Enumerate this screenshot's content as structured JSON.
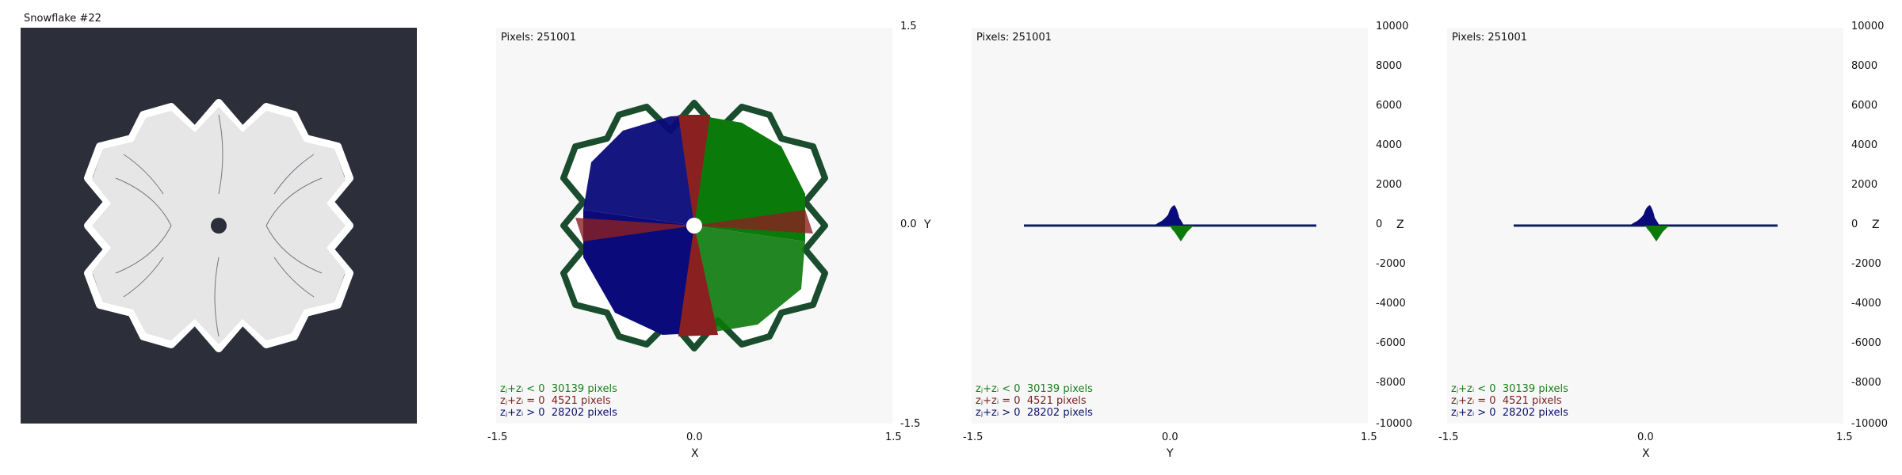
{
  "window": {
    "title": "Snowflake #22"
  },
  "colors": {
    "dark_bg": "#2c2f3a",
    "snow_fill": "#e6e6e6",
    "negative": "#0a7a0a",
    "zero": "#8b2020",
    "positive": "#0a0a7a",
    "panel_bg": "#f7f7f7"
  },
  "panels": [
    {
      "pixels_label": "Pixels: 251001",
      "x_label": "X",
      "y_label": "Y",
      "x_ticks": [
        "-1.5",
        "0.0",
        "1.5"
      ],
      "y_ticks": [
        "1.5",
        "0.0",
        "-1.5"
      ],
      "legend": [
        {
          "label": "zⱼ+zᵢ < 0",
          "value": "30139 pixels",
          "kind": "negative"
        },
        {
          "label": "zⱼ+zᵢ = 0",
          "value": "4521 pixels",
          "kind": "zero"
        },
        {
          "label": "zⱼ+zᵢ > 0",
          "value": "28202 pixels",
          "kind": "positive"
        }
      ]
    },
    {
      "pixels_label": "Pixels: 251001",
      "x_label": "Y",
      "y_label": "Z",
      "x_ticks": [
        "-1.5",
        "0.0",
        "1.5"
      ],
      "y_ticks": [
        "10000",
        "8000",
        "6000",
        "4000",
        "2000",
        "0",
        "-2000",
        "-4000",
        "-6000",
        "-8000",
        "-10000"
      ],
      "legend": [
        {
          "label": "zⱼ+zᵢ < 0",
          "value": "30139 pixels",
          "kind": "negative"
        },
        {
          "label": "zⱼ+zᵢ = 0",
          "value": "4521 pixels",
          "kind": "zero"
        },
        {
          "label": "zⱼ+zᵢ > 0",
          "value": "28202 pixels",
          "kind": "positive"
        }
      ]
    },
    {
      "pixels_label": "Pixels: 251001",
      "x_label": "X",
      "y_label": "Z",
      "x_ticks": [
        "-1.5",
        "0.0",
        "1.5"
      ],
      "y_ticks": [
        "10000",
        "8000",
        "6000",
        "4000",
        "2000",
        "0",
        "-2000",
        "-4000",
        "-6000",
        "-8000",
        "-10000"
      ],
      "legend": [
        {
          "label": "zⱼ+zᵢ < 0",
          "value": "30139 pixels",
          "kind": "negative"
        },
        {
          "label": "zⱼ+zᵢ = 0",
          "value": "4521 pixels",
          "kind": "zero"
        },
        {
          "label": "zⱼ+zᵢ > 0",
          "value": "28202 pixels",
          "kind": "positive"
        }
      ]
    }
  ]
}
